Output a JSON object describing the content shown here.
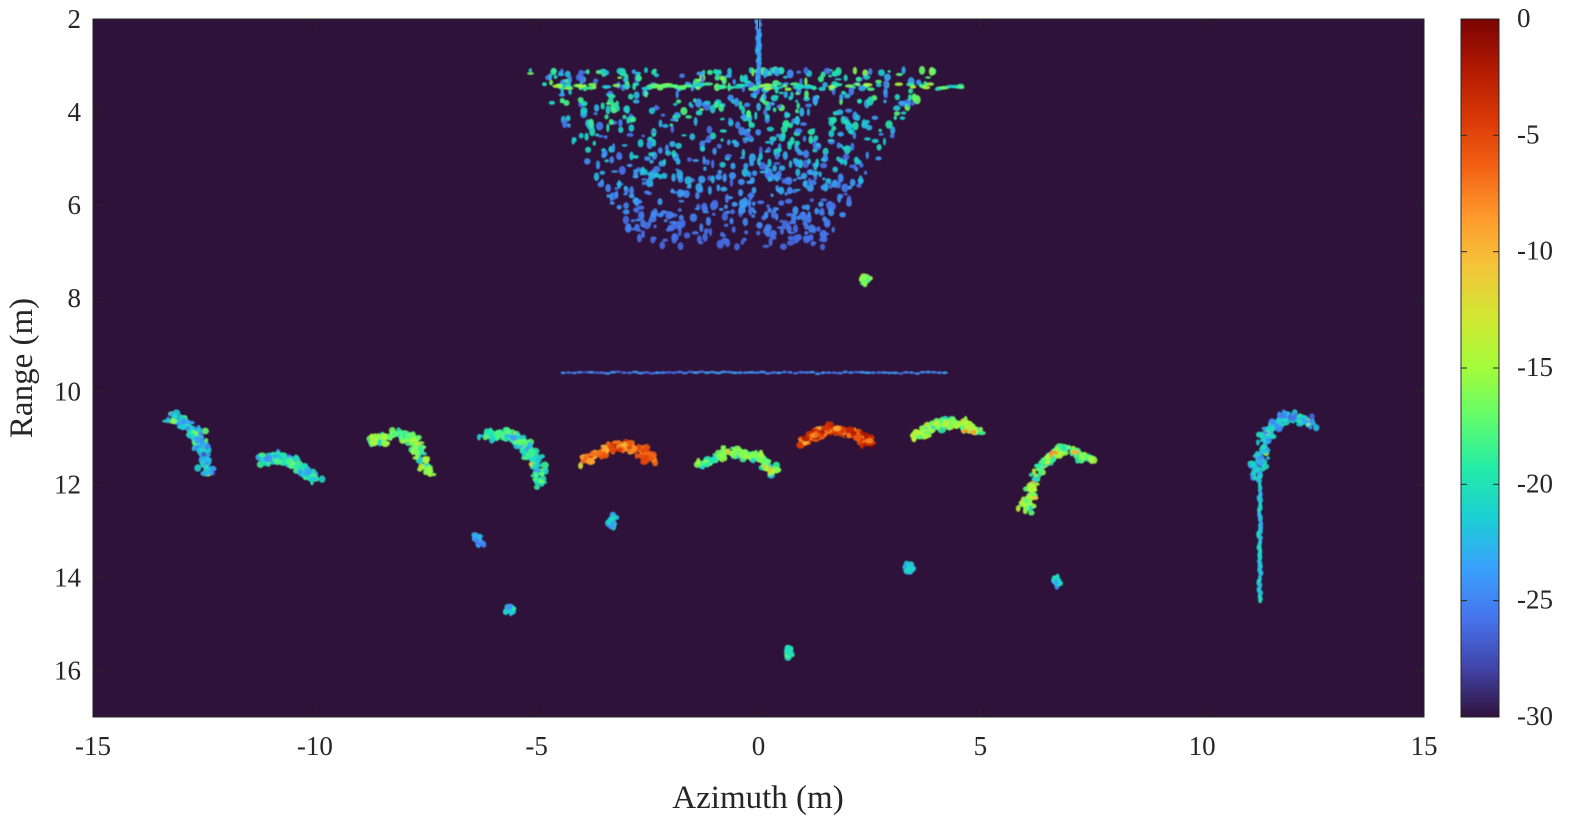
{
  "chart_data": {
    "type": "heatmap",
    "title": "",
    "xlabel": "Azimuth (m)",
    "ylabel": "Range (m)",
    "xlim": [
      -15,
      15
    ],
    "ylim": [
      17,
      2
    ],
    "x_reversed": false,
    "y_reversed": true,
    "x_ticks": [
      -15,
      -10,
      -5,
      0,
      5,
      10,
      15
    ],
    "x_tick_labels": [
      "-15",
      "-10",
      "-5",
      "0",
      "5",
      "10",
      "15"
    ],
    "y_ticks": [
      2,
      4,
      6,
      8,
      10,
      12,
      14,
      16
    ],
    "y_tick_labels": [
      "2",
      "4",
      "6",
      "8",
      "10",
      "12",
      "14",
      "16"
    ],
    "grid": false,
    "colormap": "turbo",
    "background_color": "#2e1239",
    "colorbar": {
      "location": "right",
      "limits": [
        -30,
        0
      ],
      "ticks": [
        0,
        -5,
        -10,
        -15,
        -20,
        -25,
        -30
      ],
      "tick_labels": [
        "0",
        "-5",
        "-10",
        "-15",
        "-20",
        "-25",
        "-30"
      ],
      "colors": [
        "#30123b",
        "#4145ab",
        "#4675ed",
        "#39a2fc",
        "#1bcfd4",
        "#24eca6",
        "#61fc6c",
        "#a4fc3b",
        "#d1e834",
        "#f3c63a",
        "#fe9b2d",
        "#f36315",
        "#d93806",
        "#b11901",
        "#7a0403"
      ]
    },
    "features": [
      {
        "type": "scatter-cloud",
        "x_range": [
          -4.9,
          4.3
        ],
        "y_range": [
          3.1,
          6.9
        ],
        "level_db": [
          -30,
          -16
        ]
      },
      {
        "type": "line",
        "x": 0,
        "y_range": [
          2.0,
          3.4
        ],
        "level_db": -24
      },
      {
        "type": "line",
        "x_range": [
          -4.4,
          4.2
        ],
        "y": 9.6,
        "level_db": -25
      },
      {
        "type": "blob",
        "x": 2.4,
        "y": 7.6,
        "level_db": -16
      },
      {
        "type": "arc",
        "x": [
          -13.3,
          -12.9,
          -12.6,
          -12.5,
          -12.4
        ],
        "y": [
          10.5,
          10.7,
          11.0,
          11.4,
          11.8
        ],
        "level_db": -20
      },
      {
        "type": "arc",
        "x": [
          -11.2,
          -10.8,
          -10.4,
          -10.0
        ],
        "y": [
          11.5,
          11.4,
          11.6,
          11.9
        ],
        "level_db": -18
      },
      {
        "type": "arc",
        "x": [
          -8.7,
          -8.2,
          -7.8,
          -7.6,
          -7.4
        ],
        "y": [
          11.1,
          10.9,
          11.0,
          11.4,
          11.8
        ],
        "level_db": -14
      },
      {
        "type": "arc",
        "x": [
          -6.2,
          -5.7,
          -5.3,
          -5.0,
          -4.9
        ],
        "y": [
          11.0,
          10.9,
          11.1,
          11.5,
          12.0
        ],
        "level_db": -17
      },
      {
        "type": "arc",
        "x": [
          -3.9,
          -3.3,
          -2.8,
          -2.4
        ],
        "y": [
          11.5,
          11.2,
          11.2,
          11.5
        ],
        "level_db": -4
      },
      {
        "type": "arc",
        "x": [
          -1.3,
          -0.7,
          -0.1,
          0.4
        ],
        "y": [
          11.6,
          11.3,
          11.4,
          11.7
        ],
        "level_db": -15
      },
      {
        "type": "arc",
        "x": [
          1.0,
          1.5,
          2.1,
          2.5
        ],
        "y": [
          11.1,
          10.8,
          10.9,
          11.1
        ],
        "level_db": -2
      },
      {
        "type": "arc",
        "x": [
          3.5,
          4.0,
          4.6,
          4.9
        ],
        "y": [
          11.0,
          10.7,
          10.7,
          10.9
        ],
        "level_db": -13
      },
      {
        "type": "arc",
        "x": [
          6.0,
          6.3,
          6.9,
          7.5
        ],
        "y": [
          12.6,
          11.6,
          11.2,
          11.5
        ],
        "level_db": -14
      },
      {
        "type": "arc",
        "x": [
          11.2,
          11.4,
          11.9,
          12.5
        ],
        "y": [
          11.9,
          11.0,
          10.5,
          10.7
        ],
        "level_db": -20
      },
      {
        "type": "line",
        "x": 11.3,
        "y_range": [
          12.0,
          14.5
        ],
        "level_db": -22
      },
      {
        "type": "blob",
        "x": -6.3,
        "y": 13.2,
        "level_db": -24
      },
      {
        "type": "blob",
        "x": -3.3,
        "y": 12.8,
        "level_db": -22
      },
      {
        "type": "blob",
        "x": -5.6,
        "y": 14.7,
        "level_db": -22
      },
      {
        "type": "blob",
        "x": 3.4,
        "y": 13.8,
        "level_db": -22
      },
      {
        "type": "blob",
        "x": 6.7,
        "y": 14.1,
        "level_db": -22
      },
      {
        "type": "blob",
        "x": 0.7,
        "y": 15.6,
        "level_db": -20
      }
    ]
  }
}
